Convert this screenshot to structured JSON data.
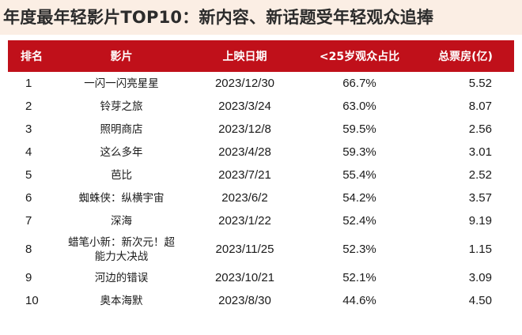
{
  "title": "年度最年轻影片TOP10：新内容、新话题受年轻观众追捧",
  "table": {
    "headers": [
      "排名",
      "影片",
      "上映日期",
      "<25岁观众占比",
      "总票房(亿)"
    ],
    "rows": [
      {
        "rank": "1",
        "film": "一闪一闪亮星星",
        "date": "2023/12/30",
        "share": "66.7%",
        "box": "5.52"
      },
      {
        "rank": "2",
        "film": "铃芽之旅",
        "date": "2023/3/24",
        "share": "63.0%",
        "box": "8.07"
      },
      {
        "rank": "3",
        "film": "照明商店",
        "date": "2023/12/8",
        "share": "59.5%",
        "box": "2.56"
      },
      {
        "rank": "4",
        "film": "这么多年",
        "date": "2023/4/28",
        "share": "59.3%",
        "box": "3.01"
      },
      {
        "rank": "5",
        "film": "芭比",
        "date": "2023/7/21",
        "share": "55.4%",
        "box": "2.52"
      },
      {
        "rank": "6",
        "film": "蜘蛛侠：纵横宇宙",
        "date": "2023/6/2",
        "share": "54.2%",
        "box": "3.57"
      },
      {
        "rank": "7",
        "film": "深海",
        "date": "2023/1/22",
        "share": "52.4%",
        "box": "9.19"
      },
      {
        "rank": "8",
        "film": "蜡笔小新：新次元！超能力大决战",
        "date": "2023/11/25",
        "share": "52.3%",
        "box": "1.15"
      },
      {
        "rank": "9",
        "film": "河边的错误",
        "date": "2023/10/21",
        "share": "52.1%",
        "box": "3.09"
      },
      {
        "rank": "10",
        "film": "奥本海默",
        "date": "2023/8/30",
        "share": "44.6%",
        "box": "4.50"
      }
    ]
  },
  "colors": {
    "header_bg": "#c0101a",
    "title_bg": "#fbeee4"
  }
}
